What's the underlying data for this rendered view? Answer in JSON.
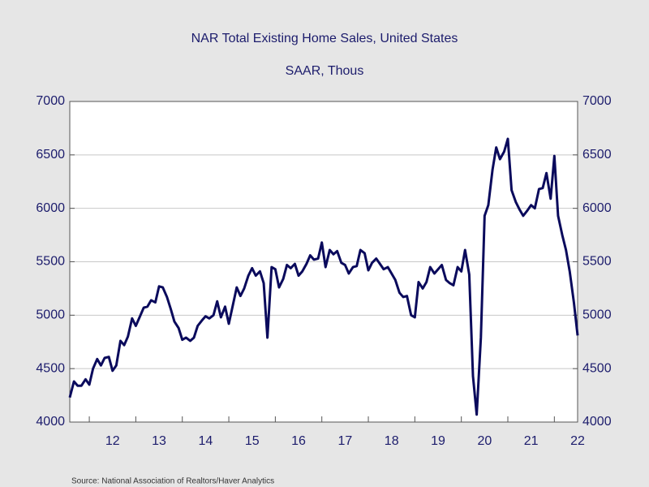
{
  "chart_data": {
    "type": "line",
    "title": "NAR Total Existing Home Sales, United States",
    "subtitle": "SAAR, Thous",
    "source": "Source:  National Association of Realtors/Haver Analytics",
    "x": [
      2011.58,
      2011.67,
      2011.75,
      2011.83,
      2011.92,
      2012.0,
      2012.08,
      2012.17,
      2012.25,
      2012.33,
      2012.42,
      2012.5,
      2012.58,
      2012.67,
      2012.75,
      2012.83,
      2012.92,
      2013.0,
      2013.08,
      2013.17,
      2013.25,
      2013.33,
      2013.42,
      2013.5,
      2013.58,
      2013.67,
      2013.75,
      2013.83,
      2013.92,
      2014.0,
      2014.08,
      2014.17,
      2014.25,
      2014.33,
      2014.42,
      2014.5,
      2014.58,
      2014.67,
      2014.75,
      2014.83,
      2014.92,
      2015.0,
      2015.08,
      2015.17,
      2015.25,
      2015.33,
      2015.42,
      2015.5,
      2015.58,
      2015.67,
      2015.75,
      2015.83,
      2015.92,
      2016.0,
      2016.08,
      2016.17,
      2016.25,
      2016.33,
      2016.42,
      2016.5,
      2016.58,
      2016.67,
      2016.75,
      2016.83,
      2016.92,
      2017.0,
      2017.08,
      2017.17,
      2017.25,
      2017.33,
      2017.42,
      2017.5,
      2017.58,
      2017.67,
      2017.75,
      2017.83,
      2017.92,
      2018.0,
      2018.08,
      2018.17,
      2018.25,
      2018.33,
      2018.42,
      2018.5,
      2018.58,
      2018.67,
      2018.75,
      2018.83,
      2018.92,
      2019.0,
      2019.08,
      2019.17,
      2019.25,
      2019.33,
      2019.42,
      2019.5,
      2019.58,
      2019.67,
      2019.75,
      2019.83,
      2019.92,
      2020.0,
      2020.08,
      2020.17,
      2020.25,
      2020.33,
      2020.42,
      2020.5,
      2020.58,
      2020.67,
      2020.75,
      2020.83,
      2020.92,
      2021.0,
      2021.08,
      2021.17,
      2021.25,
      2021.33,
      2021.42,
      2021.5,
      2021.58,
      2021.67,
      2021.75,
      2021.83,
      2021.92,
      2022.0,
      2022.08,
      2022.17,
      2022.25,
      2022.33,
      2022.42,
      2022.5
    ],
    "series": [
      {
        "name": "NAR Total Existing Home Sales",
        "color": "#0a0a5c",
        "values": [
          4230,
          4380,
          4340,
          4340,
          4400,
          4350,
          4500,
          4590,
          4530,
          4600,
          4610,
          4480,
          4530,
          4760,
          4720,
          4800,
          4970,
          4900,
          4980,
          5070,
          5080,
          5140,
          5120,
          5270,
          5260,
          5170,
          5060,
          4940,
          4880,
          4770,
          4790,
          4760,
          4790,
          4900,
          4950,
          4990,
          4970,
          5000,
          5130,
          4980,
          5080,
          4920,
          5080,
          5260,
          5180,
          5250,
          5370,
          5440,
          5370,
          5410,
          5300,
          4790,
          5450,
          5430,
          5260,
          5340,
          5470,
          5440,
          5480,
          5370,
          5410,
          5480,
          5560,
          5520,
          5530,
          5680,
          5450,
          5610,
          5570,
          5600,
          5490,
          5470,
          5390,
          5450,
          5460,
          5610,
          5580,
          5420,
          5490,
          5530,
          5480,
          5430,
          5450,
          5390,
          5330,
          5210,
          5170,
          5180,
          5000,
          4980,
          5310,
          5250,
          5310,
          5450,
          5390,
          5430,
          5470,
          5330,
          5300,
          5280,
          5450,
          5410,
          5610,
          5380,
          4430,
          4070,
          4790,
          5930,
          6030,
          6360,
          6570,
          6460,
          6530,
          6650,
          6170,
          6060,
          5990,
          5930,
          5980,
          6030,
          6000,
          6180,
          6190,
          6330,
          6090,
          6490,
          5930,
          5750,
          5610,
          5410,
          5120,
          4810
        ]
      }
    ],
    "xlim": [
      2011.58,
      2022.5
    ],
    "xticks": [
      {
        "value": 2012.5,
        "label": "12"
      },
      {
        "value": 2013.5,
        "label": "13"
      },
      {
        "value": 2014.5,
        "label": "14"
      },
      {
        "value": 2015.5,
        "label": "15"
      },
      {
        "value": 2016.5,
        "label": "16"
      },
      {
        "value": 2017.5,
        "label": "17"
      },
      {
        "value": 2018.5,
        "label": "18"
      },
      {
        "value": 2019.5,
        "label": "19"
      },
      {
        "value": 2020.5,
        "label": "20"
      },
      {
        "value": 2021.5,
        "label": "21"
      },
      {
        "value": 2022.5,
        "label": "22"
      }
    ],
    "xtick_marks": [
      2012,
      2013,
      2014,
      2015,
      2016,
      2017,
      2018,
      2019,
      2020,
      2021,
      2022
    ],
    "ylim": [
      4000,
      7000
    ],
    "yticks": [
      4000,
      4500,
      5000,
      5500,
      6000,
      6500,
      7000
    ],
    "y2lim": [
      4000,
      7000
    ],
    "y2ticks": [
      4000,
      4500,
      5000,
      5500,
      6000,
      6500,
      7000
    ],
    "grid": true
  }
}
